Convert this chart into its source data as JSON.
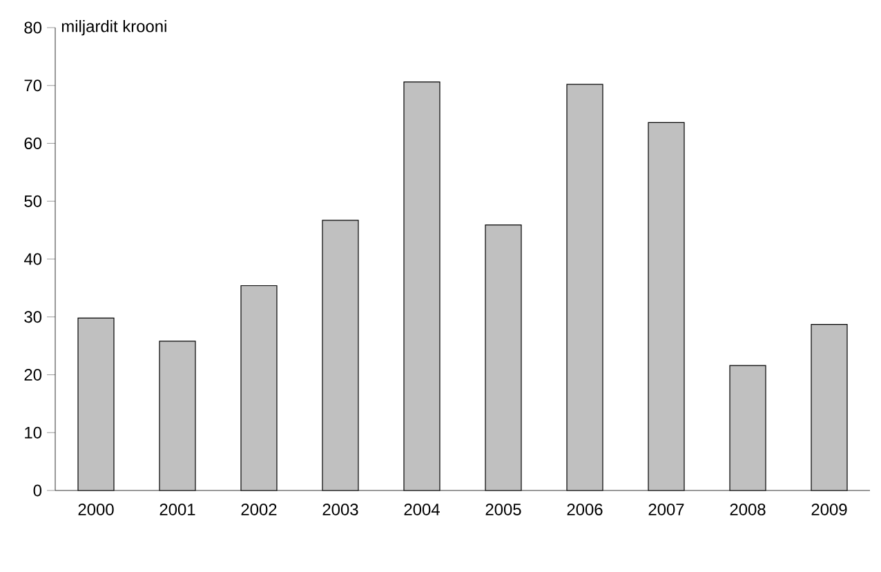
{
  "chart_data": {
    "type": "bar",
    "ylabel": "miljardit krooni",
    "categories": [
      "2000",
      "2001",
      "2002",
      "2003",
      "2004",
      "2005",
      "2006",
      "2007",
      "2008",
      "2009"
    ],
    "values": [
      29.8,
      25.8,
      35.4,
      46.7,
      70.6,
      45.9,
      70.2,
      63.6,
      21.6,
      28.7
    ],
    "color": "#c0c0c0",
    "ylim": [
      0,
      80
    ],
    "yticks": [
      0,
      10,
      20,
      30,
      40,
      50,
      60,
      70,
      80
    ],
    "grid": false
  }
}
